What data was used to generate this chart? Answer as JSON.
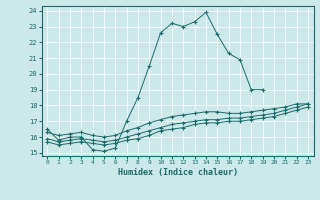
{
  "xlabel": "Humidex (Indice chaleur)",
  "bg_color": "#cde8e8",
  "line_color": "#1a6b6b",
  "xlim": [
    -0.5,
    23.5
  ],
  "ylim": [
    14.8,
    24.3
  ],
  "xticks": [
    0,
    1,
    2,
    3,
    4,
    5,
    6,
    7,
    8,
    9,
    10,
    11,
    12,
    13,
    14,
    15,
    16,
    17,
    18,
    19,
    20,
    21,
    22,
    23
  ],
  "yticks": [
    15,
    16,
    17,
    18,
    19,
    20,
    21,
    22,
    23,
    24
  ],
  "line1_x": [
    0,
    1,
    2,
    3,
    4,
    5,
    6,
    7,
    8,
    9,
    10,
    11,
    12,
    13,
    14,
    15,
    16,
    17,
    18,
    19
  ],
  "line1_y": [
    16.5,
    15.8,
    16.0,
    16.0,
    15.2,
    15.1,
    15.3,
    17.0,
    18.5,
    20.5,
    22.6,
    23.2,
    23.0,
    23.3,
    23.9,
    22.5,
    21.3,
    20.9,
    19.0,
    19.0
  ],
  "line2_x": [
    0,
    1,
    2,
    3,
    4,
    5,
    6,
    7,
    8,
    9,
    10,
    11,
    12,
    13,
    14,
    15,
    16,
    17,
    18,
    19,
    20,
    21,
    22,
    23
  ],
  "line2_y": [
    16.3,
    16.1,
    16.2,
    16.3,
    16.1,
    16.0,
    16.1,
    16.4,
    16.6,
    16.9,
    17.1,
    17.3,
    17.4,
    17.5,
    17.6,
    17.6,
    17.5,
    17.5,
    17.6,
    17.7,
    17.8,
    17.9,
    18.1,
    18.1
  ],
  "line3_x": [
    0,
    1,
    2,
    3,
    4,
    5,
    6,
    7,
    8,
    9,
    10,
    11,
    12,
    13,
    14,
    15,
    16,
    17,
    18,
    19,
    20,
    21,
    22,
    23
  ],
  "line3_y": [
    15.7,
    15.5,
    15.6,
    15.7,
    15.6,
    15.5,
    15.6,
    15.8,
    15.9,
    16.1,
    16.4,
    16.5,
    16.6,
    16.8,
    16.9,
    16.9,
    17.0,
    17.0,
    17.1,
    17.2,
    17.3,
    17.5,
    17.7,
    17.9
  ],
  "line4_x": [
    0,
    1,
    2,
    3,
    4,
    5,
    6,
    7,
    8,
    9,
    10,
    11,
    12,
    13,
    14,
    15,
    16,
    17,
    18,
    19,
    20,
    21,
    22,
    23
  ],
  "line4_y": [
    15.9,
    15.7,
    15.8,
    15.9,
    15.8,
    15.7,
    15.8,
    16.0,
    16.2,
    16.4,
    16.6,
    16.8,
    16.9,
    17.0,
    17.1,
    17.1,
    17.2,
    17.2,
    17.3,
    17.4,
    17.5,
    17.7,
    17.9,
    18.1
  ]
}
